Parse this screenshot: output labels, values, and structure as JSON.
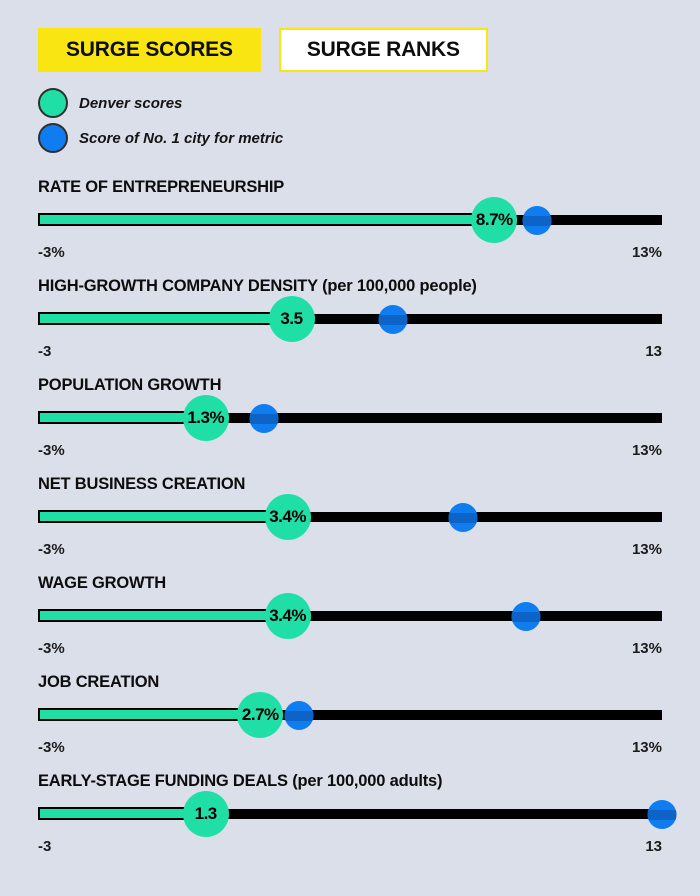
{
  "page": {
    "background": "#dbdfe9"
  },
  "colors": {
    "teal": "#20dfa6",
    "blue": "#0f7cf0",
    "blue_stripe": "#0e63c6",
    "yellow": "#f8e511",
    "track": "#000000",
    "text": "#0d0d0d"
  },
  "tabs": [
    {
      "label": "SURGE SCORES",
      "active": true
    },
    {
      "label": "SURGE RANKS",
      "active": false
    }
  ],
  "legend": [
    {
      "label": "Denver scores",
      "color": "#20dfa6"
    },
    {
      "label": "Score of No. 1 city for metric",
      "color": "#0f7cf0"
    }
  ],
  "chart_data": {
    "type": "scatter",
    "title": "SURGE SCORES",
    "axis_range": [
      -3,
      13
    ],
    "grid": false,
    "legend_position": "top-left",
    "categories": [
      "RATE OF ENTREPRENEURSHIP",
      "HIGH-GROWTH COMPANY DENSITY (per 100,000 people)",
      "POPULATION GROWTH",
      "NET BUSINESS CREATION",
      "WAGE GROWTH",
      "JOB CREATION",
      "EARLY-STAGE FUNDING DEALS (per 100,000 adults)"
    ],
    "series": [
      {
        "name": "Denver scores",
        "values": [
          8.7,
          3.5,
          1.3,
          3.4,
          3.4,
          2.7,
          1.3
        ]
      },
      {
        "name": "Score of No. 1 city for metric",
        "values": [
          9.8,
          6.1,
          2.8,
          7.9,
          9.5,
          3.7,
          13
        ]
      }
    ],
    "metrics": [
      {
        "label": "RATE OF ENTREPRENEURSHIP",
        "min": -3,
        "max": 13,
        "axis_min_label": "-3%",
        "axis_max_label": "13%",
        "denver_value": 8.7,
        "denver_label": "8.7%",
        "no1_value": 9.8
      },
      {
        "label": "HIGH-GROWTH COMPANY DENSITY (per 100,000 people)",
        "min": -3,
        "max": 13,
        "axis_min_label": "-3",
        "axis_max_label": "13",
        "denver_value": 3.5,
        "denver_label": "3.5",
        "no1_value": 6.1
      },
      {
        "label": "POPULATION GROWTH",
        "min": -3,
        "max": 13,
        "axis_min_label": "-3%",
        "axis_max_label": "13%",
        "denver_value": 1.3,
        "denver_label": "1.3%",
        "no1_value": 2.8
      },
      {
        "label": "NET BUSINESS CREATION",
        "min": -3,
        "max": 13,
        "axis_min_label": "-3%",
        "axis_max_label": "13%",
        "denver_value": 3.4,
        "denver_label": "3.4%",
        "no1_value": 7.9
      },
      {
        "label": "WAGE GROWTH",
        "min": -3,
        "max": 13,
        "axis_min_label": "-3%",
        "axis_max_label": "13%",
        "denver_value": 3.4,
        "denver_label": "3.4%",
        "no1_value": 9.5
      },
      {
        "label": "JOB CREATION",
        "min": -3,
        "max": 13,
        "axis_min_label": "-3%",
        "axis_max_label": "13%",
        "denver_value": 2.7,
        "denver_label": "2.7%",
        "no1_value": 3.7
      },
      {
        "label": "EARLY-STAGE FUNDING DEALS (per 100,000 adults)",
        "min": -3,
        "max": 13,
        "axis_min_label": "-3",
        "axis_max_label": "13",
        "denver_value": 1.3,
        "denver_label": "1.3",
        "no1_value": 13
      }
    ]
  }
}
